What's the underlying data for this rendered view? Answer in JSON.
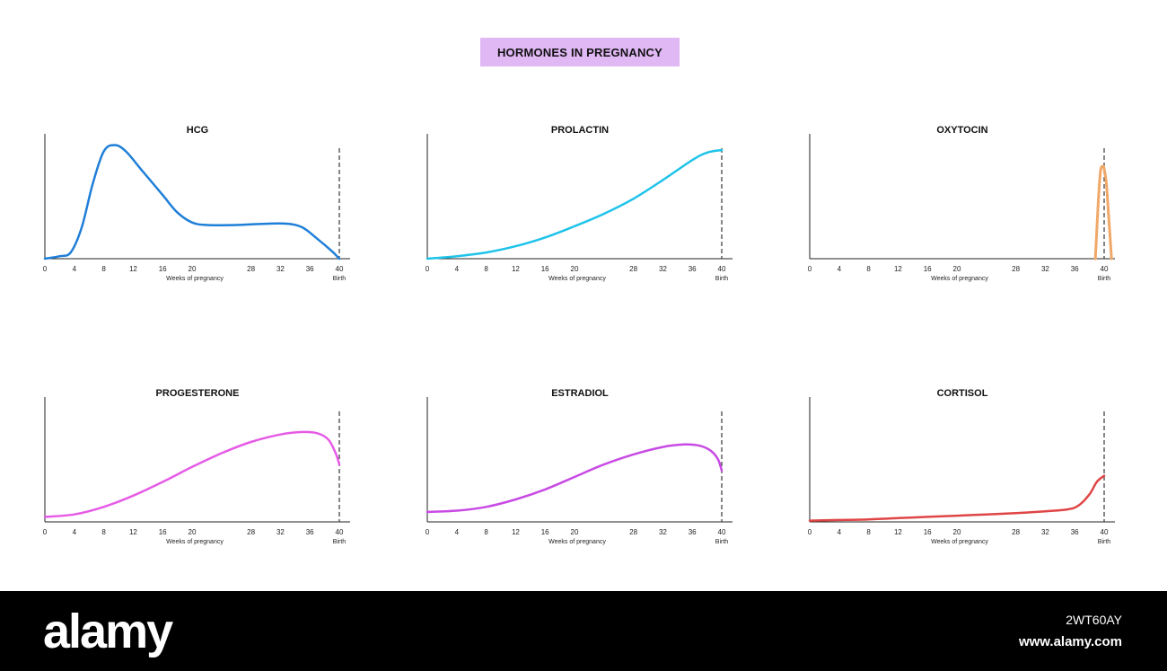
{
  "title": "HORMONES IN PREGNANCY",
  "footer": {
    "brand": "alamy",
    "image_id": "2WT60AY",
    "url": "www.alamy.com"
  },
  "chart_data": [
    {
      "type": "line",
      "title": "HCG",
      "xlabel": "Weeks of pregnancy",
      "end_label": "Birth",
      "color": "#1f7fd8",
      "xticks": [
        0,
        4,
        8,
        12,
        16,
        20,
        28,
        32,
        36,
        40
      ],
      "xlim": [
        0,
        40
      ],
      "ylim": [
        0,
        1
      ],
      "marker_x": 40,
      "x": [
        0,
        2,
        3.5,
        5,
        6.5,
        8,
        9.5,
        11,
        13,
        16,
        18,
        20,
        22,
        26,
        30,
        33,
        35,
        37,
        39,
        40
      ],
      "y": [
        0,
        0.02,
        0.05,
        0.25,
        0.6,
        0.86,
        0.91,
        0.86,
        0.72,
        0.51,
        0.37,
        0.29,
        0.27,
        0.27,
        0.28,
        0.28,
        0.25,
        0.16,
        0.06,
        0
      ]
    },
    {
      "type": "line",
      "title": "PROLACTIN",
      "xlabel": "Weeks of pregnancy",
      "end_label": "Birth",
      "color": "#1ec3ea",
      "xticks": [
        0,
        4,
        8,
        12,
        16,
        20,
        28,
        32,
        36,
        40
      ],
      "xlim": [
        0,
        40
      ],
      "ylim": [
        0,
        1
      ],
      "marker_x": 40,
      "x": [
        0,
        4,
        8,
        12,
        16,
        20,
        24,
        28,
        32,
        36,
        38,
        40
      ],
      "y": [
        0,
        0.02,
        0.05,
        0.1,
        0.17,
        0.26,
        0.36,
        0.48,
        0.63,
        0.79,
        0.85,
        0.87
      ]
    },
    {
      "type": "line",
      "title": "OXYTOCIN",
      "xlabel": "Weeks of pregnancy",
      "end_label": "Birth",
      "color": "#f0a868",
      "xticks": [
        0,
        4,
        8,
        12,
        16,
        20,
        28,
        32,
        36,
        40
      ],
      "xlim": [
        0,
        40
      ],
      "ylim": [
        0,
        1
      ],
      "marker_x": 40,
      "x": [
        38.8,
        39.2,
        39.5,
        39.8,
        40,
        40.3,
        40.6,
        41
      ],
      "y": [
        0,
        0.45,
        0.7,
        0.74,
        0.72,
        0.6,
        0.35,
        0
      ]
    },
    {
      "type": "line",
      "title": "PROGESTERONE",
      "xlabel": "Weeks of pregnancy",
      "end_label": "Birth",
      "color": "#e65be6",
      "xticks": [
        0,
        4,
        8,
        12,
        16,
        20,
        28,
        32,
        36,
        40
      ],
      "xlim": [
        0,
        40
      ],
      "ylim": [
        0,
        1
      ],
      "marker_x": 40,
      "x": [
        0,
        4,
        8,
        12,
        16,
        20,
        24,
        28,
        32,
        35,
        37,
        38.5,
        39.5,
        40
      ],
      "y": [
        0.04,
        0.06,
        0.12,
        0.21,
        0.32,
        0.44,
        0.55,
        0.64,
        0.7,
        0.72,
        0.71,
        0.66,
        0.55,
        0.46
      ]
    },
    {
      "type": "line",
      "title": "ESTRADIOL",
      "xlabel": "Weeks of pregnancy",
      "end_label": "Birth",
      "color": "#c84ae4",
      "xticks": [
        0,
        4,
        8,
        12,
        16,
        20,
        28,
        32,
        36,
        40
      ],
      "xlim": [
        0,
        40
      ],
      "ylim": [
        0,
        1
      ],
      "marker_x": 40,
      "x": [
        0,
        4,
        8,
        12,
        16,
        20,
        24,
        28,
        32,
        35,
        37,
        38.5,
        39.5,
        40
      ],
      "y": [
        0.08,
        0.09,
        0.12,
        0.18,
        0.26,
        0.36,
        0.46,
        0.54,
        0.6,
        0.62,
        0.61,
        0.57,
        0.5,
        0.41
      ]
    },
    {
      "type": "line",
      "title": "CORTISOL",
      "xlabel": "Weeks of pregnancy",
      "end_label": "Birth",
      "color": "#e04545",
      "xticks": [
        0,
        4,
        8,
        12,
        16,
        20,
        28,
        32,
        36,
        40
      ],
      "xlim": [
        0,
        40
      ],
      "ylim": [
        0,
        1
      ],
      "marker_x": 40,
      "x": [
        0,
        4,
        8,
        12,
        16,
        20,
        24,
        28,
        32,
        35,
        36.5,
        38,
        39,
        40
      ],
      "y": [
        0.01,
        0.015,
        0.02,
        0.03,
        0.04,
        0.05,
        0.06,
        0.07,
        0.085,
        0.1,
        0.13,
        0.22,
        0.32,
        0.37
      ]
    }
  ]
}
